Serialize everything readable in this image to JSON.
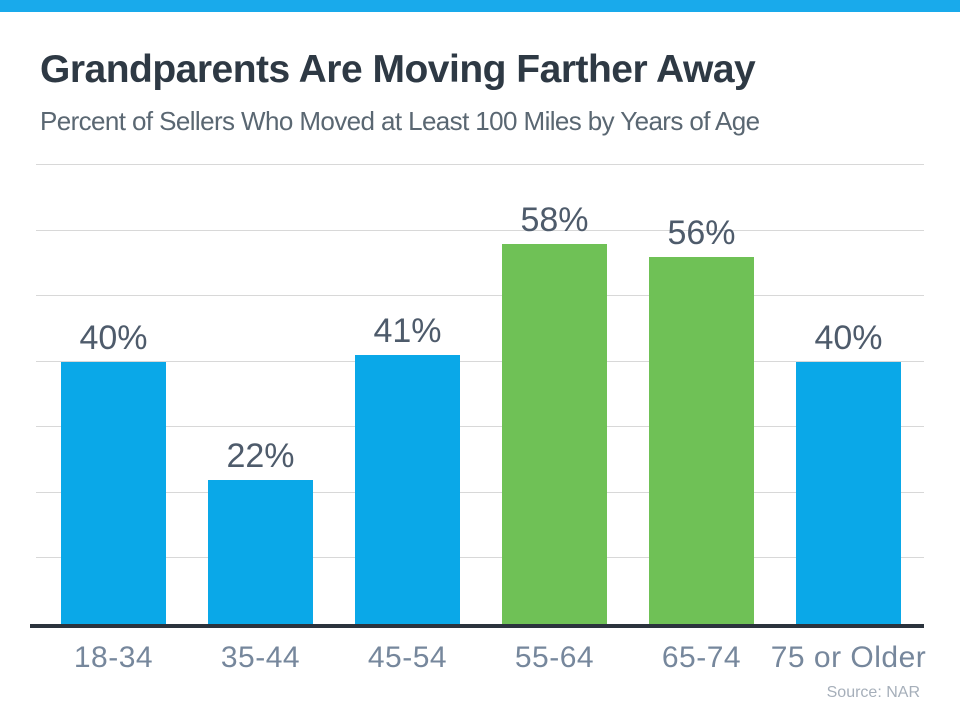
{
  "ui": {
    "css_vars": {
      "background": "#FFFFFF",
      "topbar": "#19AAEB",
      "title": "#2E3944",
      "subtitle": "#5A6772",
      "value-label": "#4E5B6B",
      "x-label": "#76879C",
      "gridline": "#D8D8D8",
      "axis": "#2B333D",
      "source": "#A6AFBA"
    }
  },
  "chart_data": {
    "type": "bar",
    "title": "Grandparents Are Moving Farther Away",
    "subtitle": "Percent of Sellers Who Moved at Least 100 Miles by Years of Age",
    "categories": [
      "18-34",
      "35-44",
      "45-54",
      "55-64",
      "65-74",
      "75 or Older"
    ],
    "values": [
      40,
      22,
      41,
      58,
      56,
      40
    ],
    "value_labels": [
      "40%",
      "22%",
      "41%",
      "58%",
      "56%",
      "40%"
    ],
    "colors": [
      "#0AA8E8",
      "#0AA8E8",
      "#0AA8E8",
      "#6FC156",
      "#6FC156",
      "#0AA8E8"
    ],
    "color_roles": {
      "blue": "#0AA8E8",
      "green": "#6FC156"
    },
    "xlabel": "",
    "ylabel": "",
    "ylim": [
      0,
      70
    ],
    "gridline_step": 10,
    "grid": true,
    "legend": "none",
    "value_suffix": "%"
  },
  "source": {
    "label": "Source: NAR"
  }
}
